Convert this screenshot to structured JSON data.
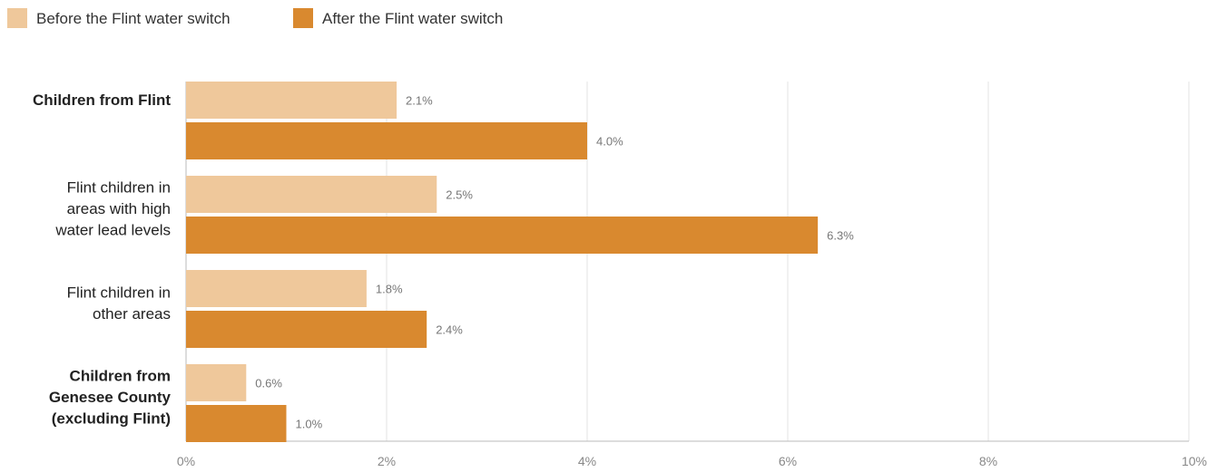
{
  "chart_data": {
    "type": "bar",
    "orientation": "horizontal",
    "title": "",
    "xlabel": "",
    "ylabel": "",
    "xlim": [
      0,
      10
    ],
    "x_ticks": [
      {
        "value": 0,
        "label": "0%"
      },
      {
        "value": 2,
        "label": "2%"
      },
      {
        "value": 4,
        "label": "4%"
      },
      {
        "value": 6,
        "label": "6%"
      },
      {
        "value": 8,
        "label": "8%"
      },
      {
        "value": 10,
        "label": "10%"
      }
    ],
    "grid": true,
    "legend_position": "top-left",
    "categories": [
      {
        "lines": [
          "Children from Flint"
        ],
        "bold": true
      },
      {
        "lines": [
          "Flint children in",
          "areas with high",
          "water lead levels"
        ],
        "bold": false
      },
      {
        "lines": [
          "Flint children in",
          "other areas"
        ],
        "bold": false
      },
      {
        "lines": [
          "Children from",
          "Genesee County",
          "(excluding Flint)"
        ],
        "bold": true
      }
    ],
    "series": [
      {
        "name": "Before the Flint water switch",
        "color": "#efc89b",
        "values": [
          2.1,
          2.5,
          1.8,
          0.6
        ],
        "labels": [
          "2.1%",
          "2.5%",
          "1.8%",
          "0.6%"
        ]
      },
      {
        "name": "After the Flint water switch",
        "color": "#d9892f",
        "values": [
          4.0,
          6.3,
          2.4,
          1.0
        ],
        "labels": [
          "4.0%",
          "6.3%",
          "2.4%",
          "1.0%"
        ]
      }
    ]
  }
}
